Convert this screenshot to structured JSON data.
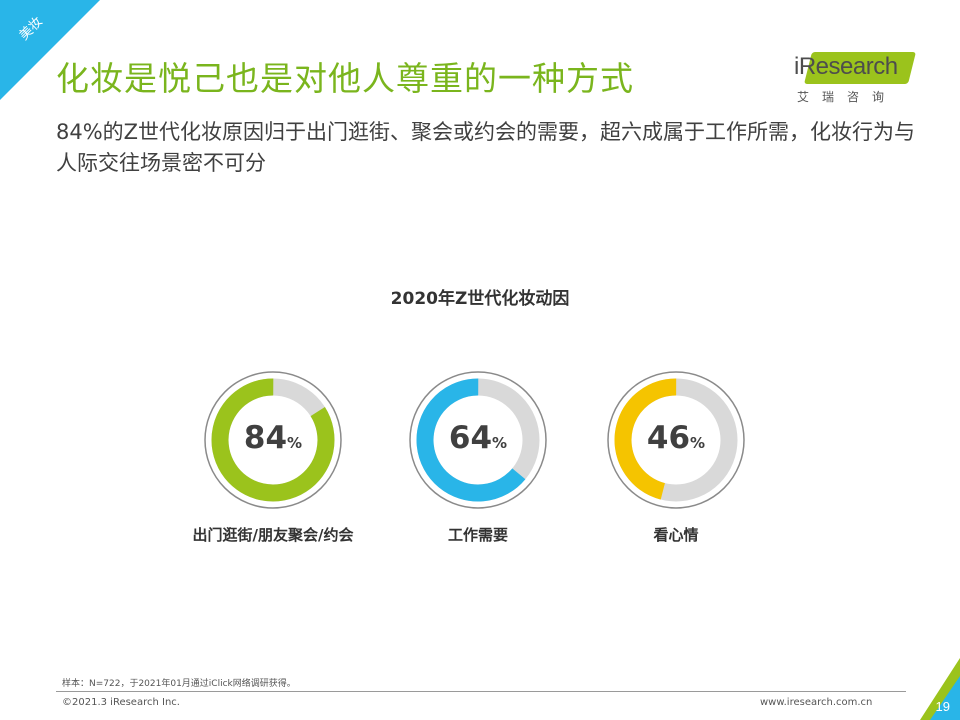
{
  "header": {
    "corner_tag": "美妆",
    "title": "化妆是悦己也是对他人尊重的一种方式",
    "subtitle": "84%的Z世代化妆原因归于出门逛街、聚会或约会的需要，超六成属于工作所需，化妆行为与人际交往场景密不可分"
  },
  "logo": {
    "name": "iResearch",
    "sub": "艾瑞咨询"
  },
  "chart_data": {
    "type": "pie",
    "title": "2020年Z世代化妆动因",
    "unit": "%",
    "categories": [
      "出门逛街/朋友聚会/约会",
      "工作需要",
      "看心情"
    ],
    "values": [
      84,
      64,
      46
    ],
    "series_colors": [
      "#9bc31c",
      "#29b5e8",
      "#f5c400"
    ],
    "track_color": "#d9d9d9",
    "ylim": [
      0,
      100
    ]
  },
  "footer": {
    "sample_note": "样本：N=722，于2021年01月通过iClick网络调研获得。",
    "copyright": "©2021.3 iResearch Inc.",
    "website": "www.iresearch.com.cn",
    "page_number": "19"
  },
  "colors": {
    "title_green": "#7ab51d",
    "brand_blue": "#29b5e8",
    "brand_green": "#9bc31c"
  }
}
